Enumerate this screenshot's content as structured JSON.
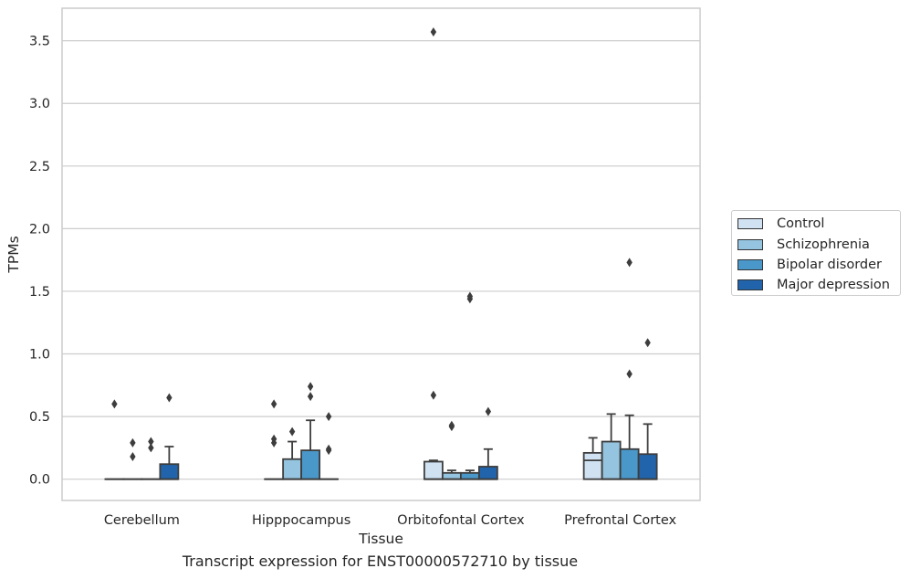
{
  "chart_data": {
    "type": "boxplot",
    "title": "",
    "caption": "Transcript expression for ENST00000572710 by tissue",
    "xlabel": "Tissue",
    "ylabel": "TPMs",
    "ylim": [
      -0.17,
      3.76
    ],
    "yticks": [
      "0.0",
      "0.5",
      "1.0",
      "1.5",
      "2.0",
      "2.5",
      "3.0",
      "3.5"
    ],
    "grid": true,
    "legend_position": "right",
    "categories": [
      "Cerebellum",
      "Hipppocampus",
      "Orbitofontal Cortex",
      "Prefrontal Cortex"
    ],
    "series": [
      {
        "name": "Control",
        "color": "#d0e1f2",
        "boxes": [
          {
            "q1": 0,
            "median": 0,
            "q3": 0,
            "whisker_low": 0,
            "whisker_high": 0,
            "outliers": [
              0.6
            ]
          },
          {
            "q1": 0,
            "median": 0,
            "q3": 0,
            "whisker_low": 0,
            "whisker_high": 0,
            "outliers": [
              0.6,
              0.29,
              0.32
            ]
          },
          {
            "q1": 0,
            "median": 0,
            "q3": 0.14,
            "whisker_low": 0,
            "whisker_high": 0.15,
            "outliers": [
              3.57,
              0.67
            ]
          },
          {
            "q1": 0,
            "median": 0.15,
            "q3": 0.21,
            "whisker_low": 0,
            "whisker_high": 0.33,
            "outliers": []
          }
        ]
      },
      {
        "name": "Schizophrenia",
        "color": "#94c4df",
        "boxes": [
          {
            "q1": 0,
            "median": 0,
            "q3": 0,
            "whisker_low": 0,
            "whisker_high": 0,
            "outliers": [
              0.18,
              0.29
            ]
          },
          {
            "q1": 0,
            "median": 0,
            "q3": 0.16,
            "whisker_low": 0,
            "whisker_high": 0.3,
            "outliers": [
              0.38
            ]
          },
          {
            "q1": 0,
            "median": 0,
            "q3": 0.05,
            "whisker_low": 0,
            "whisker_high": 0.07,
            "outliers": [
              0.42,
              0.43
            ]
          },
          {
            "q1": 0,
            "median": 0,
            "q3": 0.3,
            "whisker_low": 0,
            "whisker_high": 0.52,
            "outliers": []
          }
        ]
      },
      {
        "name": "Bipolar disorder",
        "color": "#4a98c9",
        "boxes": [
          {
            "q1": 0,
            "median": 0,
            "q3": 0,
            "whisker_low": 0,
            "whisker_high": 0,
            "outliers": [
              0.25,
              0.3
            ]
          },
          {
            "q1": 0,
            "median": 0,
            "q3": 0.23,
            "whisker_low": 0,
            "whisker_high": 0.47,
            "outliers": [
              0.66,
              0.74
            ]
          },
          {
            "q1": 0,
            "median": 0,
            "q3": 0.05,
            "whisker_low": 0,
            "whisker_high": 0.07,
            "outliers": [
              1.44,
              1.46
            ]
          },
          {
            "q1": 0,
            "median": 0,
            "q3": 0.24,
            "whisker_low": 0,
            "whisker_high": 0.51,
            "outliers": [
              1.73,
              0.84
            ]
          }
        ]
      },
      {
        "name": "Major depression",
        "color": "#2164ab",
        "boxes": [
          {
            "q1": 0,
            "median": 0,
            "q3": 0.12,
            "whisker_low": 0,
            "whisker_high": 0.26,
            "outliers": [
              0.65
            ]
          },
          {
            "q1": 0,
            "median": 0,
            "q3": 0,
            "whisker_low": 0,
            "whisker_high": 0,
            "outliers": [
              0.5,
              0.23,
              0.24
            ]
          },
          {
            "q1": 0,
            "median": 0,
            "q3": 0.1,
            "whisker_low": 0,
            "whisker_high": 0.24,
            "outliers": [
              0.54
            ]
          },
          {
            "q1": 0,
            "median": 0,
            "q3": 0.2,
            "whisker_low": 0,
            "whisker_high": 0.44,
            "outliers": [
              1.09
            ]
          }
        ]
      }
    ]
  }
}
